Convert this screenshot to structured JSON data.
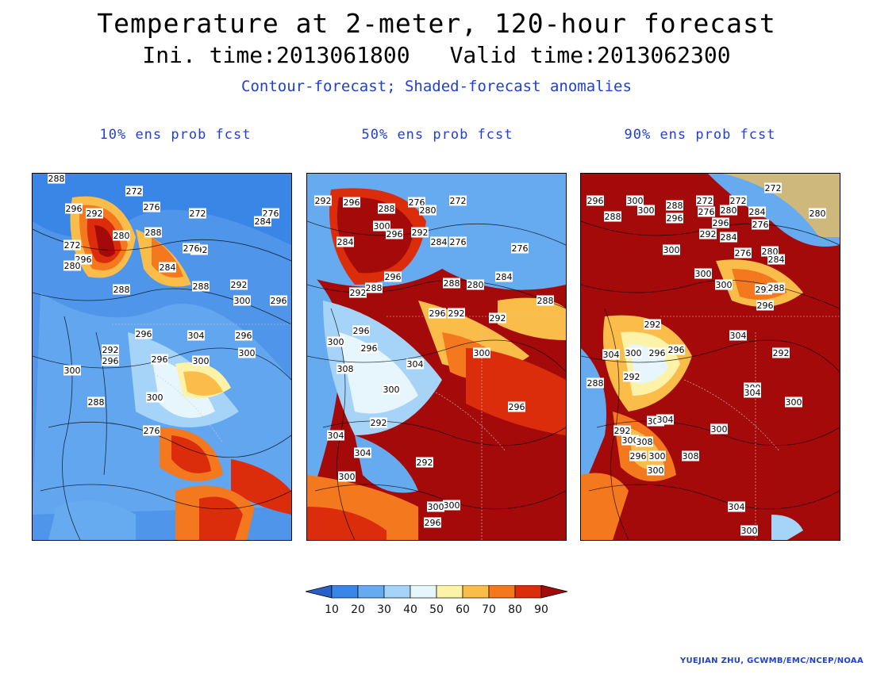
{
  "title": "Temperature at 2-meter, 120-hour forecast",
  "init_label": "Ini. time:2013061800",
  "valid_label": "Valid time:2013062300",
  "subtitle": "Contour-forecast; Shaded-forecast anomalies",
  "panels": [
    {
      "label": "10% ens prob fcst",
      "contour_labels": [
        "288",
        "272",
        "276",
        "296",
        "292",
        "272",
        "276",
        "284",
        "280",
        "288",
        "272",
        "292",
        "296",
        "276",
        "280",
        "284",
        "288",
        "292",
        "288",
        "300",
        "296",
        "296",
        "304",
        "296",
        "292",
        "300",
        "296",
        "296",
        "300",
        "300",
        "300",
        "288",
        "276"
      ]
    },
    {
      "label": "50% ens prob fcst",
      "contour_labels": [
        "292",
        "296",
        "288",
        "276",
        "280",
        "272",
        "300",
        "296",
        "292",
        "284",
        "276",
        "284",
        "276",
        "296",
        "288",
        "280",
        "292",
        "288",
        "284",
        "296",
        "292",
        "292",
        "296",
        "300",
        "296",
        "304",
        "308",
        "300",
        "292",
        "304",
        "300",
        "296",
        "300",
        "304",
        "292",
        "300",
        "296",
        "300",
        "288"
      ]
    },
    {
      "label": "90% ens prob fcst",
      "contour_labels": [
        "296",
        "300",
        "288",
        "272",
        "272",
        "288",
        "300",
        "280",
        "272",
        "276",
        "284",
        "296",
        "292",
        "284",
        "276",
        "280",
        "284",
        "296",
        "300",
        "276",
        "300",
        "300",
        "292",
        "288",
        "296",
        "292",
        "304",
        "296",
        "300",
        "296",
        "304",
        "292",
        "300",
        "292",
        "304",
        "304",
        "300",
        "300",
        "300",
        "304",
        "292",
        "308",
        "300",
        "308",
        "296",
        "300",
        "304",
        "300",
        "288",
        "280"
      ]
    }
  ],
  "colorbar": {
    "ticks": [
      "10",
      "20",
      "30",
      "40",
      "50",
      "60",
      "70",
      "80",
      "90"
    ],
    "colors": [
      "#2a5fc8",
      "#3a86e6",
      "#66aaf0",
      "#a6d4f8",
      "#e6f6fc",
      "#fdf3a8",
      "#fbbd4a",
      "#f4781e",
      "#db2d0c",
      "#a50a0a"
    ]
  },
  "credit": "YUEJIAN ZHU, GCWMB/EMC/NCEP/NOAA"
}
